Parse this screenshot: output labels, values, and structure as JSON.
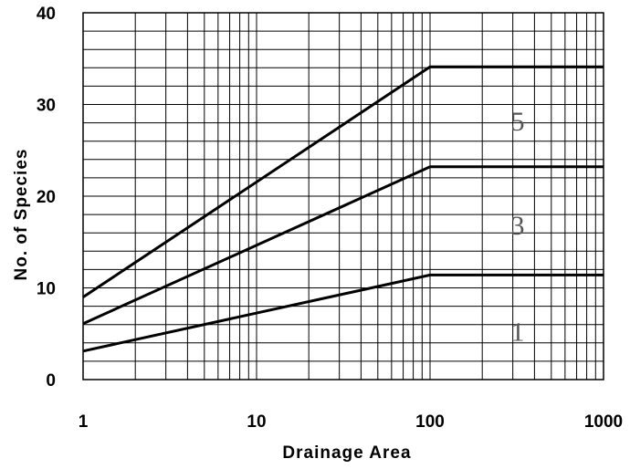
{
  "chart_data": {
    "type": "line",
    "title": "",
    "xlabel": "Drainage Area",
    "ylabel": "No. of Species",
    "x_scale": "log",
    "xlim": [
      1,
      1000
    ],
    "ylim": [
      0,
      40
    ],
    "grid": true,
    "x_ticks": [
      "1",
      "10",
      "100",
      "1000"
    ],
    "y_ticks": [
      "0",
      "10",
      "20",
      "30",
      "40"
    ],
    "series": [
      {
        "label": "1",
        "x": [
          1,
          100,
          1000
        ],
        "y": [
          3.1,
          11.4,
          11.4
        ]
      },
      {
        "label": "3",
        "x": [
          1,
          100,
          1000
        ],
        "y": [
          6.1,
          23.2,
          23.2
        ]
      },
      {
        "label": "5",
        "x": [
          1,
          100,
          1000
        ],
        "y": [
          9.0,
          34.1,
          34.1
        ]
      }
    ]
  }
}
